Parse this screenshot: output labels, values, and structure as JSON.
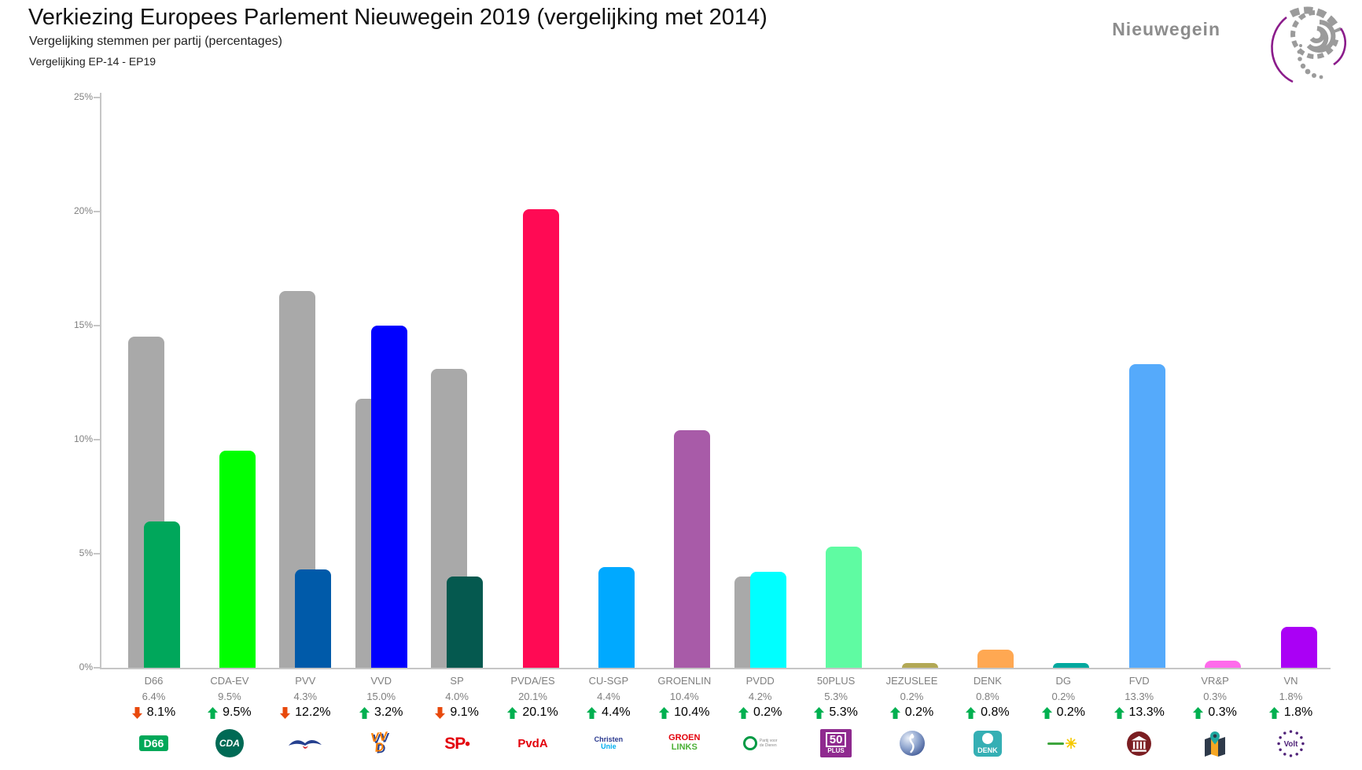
{
  "header": {
    "title": "Verkiezing Europees Parlement Nieuwegein 2019 (vergelijking met 2014)",
    "subtitle": "Vergelijking stemmen per partij (percentages)",
    "comparison": "Vergelijking EP-14 - EP19",
    "municipality_logo_text": "Nieuwegein"
  },
  "colors": {
    "bar_2014": "#A9A9A9",
    "axis_line": "#C6C6C6",
    "tick_text": "#808080",
    "label_text": "#7F7F7F",
    "change_text": "#000000",
    "up_arrow": "#00B050",
    "down_arrow": "#E8490C",
    "logo_gray": "#9B9B9B",
    "logo_purple": "#8B1C8B"
  },
  "axis": {
    "y_ticks": [
      {
        "label": "25%",
        "value": 25
      },
      {
        "label": "20%",
        "value": 20
      },
      {
        "label": "15%",
        "value": 15
      },
      {
        "label": "10%",
        "value": 10
      },
      {
        "label": "5%",
        "value": 5
      },
      {
        "label": "0%",
        "value": 0
      }
    ],
    "y_max": 25
  },
  "chart_data": {
    "type": "bar",
    "title": "Verkiezing Europees Parlement Nieuwegein 2019 (vergelijking met 2014)",
    "subtitle": "Vergelijking stemmen per partij (percentages)",
    "comparison": "Vergelijking EP-14 - EP19",
    "xlabel": "",
    "ylabel": "",
    "ylim": [
      0,
      25
    ],
    "grid": false,
    "categories": [
      "D66",
      "CDA-EV",
      "PVV",
      "VVD",
      "SP",
      "PVDA/ES",
      "CU-SGP",
      "GROENLIN",
      "PVDD",
      "50PLUS",
      "JEZUSLEE",
      "DENK",
      "DG",
      "FVD",
      "VR&P",
      "VN"
    ],
    "series": [
      {
        "name": "EP-14",
        "color": "#A9A9A9",
        "values": [
          14.5,
          0,
          16.5,
          11.8,
          13.1,
          0,
          0,
          0,
          4.0,
          0,
          0,
          0,
          0,
          0,
          0,
          0
        ]
      },
      {
        "name": "EP-19",
        "values": [
          6.4,
          9.5,
          4.3,
          15.0,
          4.0,
          20.1,
          4.4,
          10.4,
          4.2,
          5.3,
          0.2,
          0.8,
          0.2,
          13.3,
          0.3,
          1.8
        ]
      }
    ],
    "parties": [
      {
        "name": "D66",
        "value": "6.4%",
        "change": "8.1%",
        "direction": "down",
        "v2019": 6.4,
        "v2014": 14.5,
        "color": "#00A75B",
        "logo": {
          "type": "badge",
          "text": "D66",
          "bg": "#00A859",
          "fg": "#FFFFFF",
          "fs": 14
        }
      },
      {
        "name": "CDA-EV",
        "value": "9.5%",
        "change": "9.5%",
        "direction": "up",
        "v2019": 9.5,
        "v2014": 0,
        "color": "#00FF00",
        "logo": {
          "type": "circle",
          "text": "CDA",
          "bg": "#006A55",
          "fg": "#FFFFFF",
          "fs": 12
        }
      },
      {
        "name": "PVV",
        "value": "4.3%",
        "change": "12.2%",
        "direction": "down",
        "v2019": 4.3,
        "v2014": 16.5,
        "color": "#005AA9",
        "logo": {
          "type": "pvv-bird"
        }
      },
      {
        "name": "VVD",
        "value": "15.0%",
        "change": "3.2%",
        "direction": "up",
        "v2019": 15.0,
        "v2014": 11.8,
        "color": "#0000FF",
        "logo": {
          "type": "vvd",
          "line1": "VV",
          "line2": "D",
          "fg": "#FF7F00",
          "shadow": "#25408F"
        }
      },
      {
        "name": "SP",
        "value": "4.0%",
        "change": "9.1%",
        "direction": "down",
        "v2019": 4.0,
        "v2014": 13.1,
        "color": "#05594F",
        "logo": {
          "type": "sp",
          "text": "SP",
          "color": "#E3000B"
        }
      },
      {
        "name": "PVDA/ES",
        "value": "20.1%",
        "change": "20.1%",
        "direction": "up",
        "v2019": 20.1,
        "v2014": 0,
        "color": "#FF0A54",
        "logo": {
          "type": "plain-text",
          "text": "PvdA",
          "color": "#E3000B",
          "fs": 15
        }
      },
      {
        "name": "CU-SGP",
        "value": "4.4%",
        "change": "4.4%",
        "direction": "up",
        "v2019": 4.4,
        "v2014": 0,
        "color": "#00A9FF",
        "logo": {
          "type": "stack",
          "lines": [
            {
              "text": "Christen",
              "color": "#2B3A8F",
              "fs": 9
            },
            {
              "text": "Unie",
              "color": "#00AEEF",
              "fs": 9
            }
          ]
        }
      },
      {
        "name": "GROENLIN",
        "value": "10.4%",
        "change": "10.4%",
        "direction": "up",
        "v2019": 10.4,
        "v2014": 0,
        "color": "#A85BA8",
        "logo": {
          "type": "stack",
          "lines": [
            {
              "text": "GROEN",
              "color": "#E3000B",
              "fs": 11
            },
            {
              "text": "LINKS",
              "color": "#4BB035",
              "fs": 11
            }
          ]
        }
      },
      {
        "name": "PVDD",
        "value": "4.2%",
        "change": "0.2%",
        "direction": "up",
        "v2019": 4.2,
        "v2014": 4.0,
        "color": "#00FFFF",
        "logo": {
          "type": "pvdd",
          "line1": "Partij voor",
          "line2": "de Dieren",
          "ring": "#009A44"
        }
      },
      {
        "name": "50PLUS",
        "value": "5.3%",
        "change": "5.3%",
        "direction": "up",
        "v2019": 5.3,
        "v2014": 0,
        "color": "#5FFBA2",
        "logo": {
          "type": "fiftyplus",
          "top": "50",
          "bottom": "PLUS",
          "bg": "#8F2A8F"
        }
      },
      {
        "name": "JEZUSLEE",
        "value": "0.2%",
        "change": "0.2%",
        "direction": "up",
        "v2019": 0.2,
        "v2014": 0,
        "color": "#B2A855",
        "logo": {
          "type": "globe"
        }
      },
      {
        "name": "DENK",
        "value": "0.8%",
        "change": "0.8%",
        "direction": "up",
        "v2019": 0.8,
        "v2014": 0,
        "color": "#FFA852",
        "logo": {
          "type": "denk",
          "text": "DENK",
          "bg": "#35AFB4"
        }
      },
      {
        "name": "DG",
        "value": "0.2%",
        "change": "0.2%",
        "direction": "up",
        "v2019": 0.2,
        "v2014": 0,
        "color": "#00A89E",
        "logo": {
          "type": "dg-sun"
        }
      },
      {
        "name": "FVD",
        "value": "13.3%",
        "change": "13.3%",
        "direction": "up",
        "v2019": 13.3,
        "v2014": 0,
        "color": "#55AAFB",
        "logo": {
          "type": "temple",
          "bg": "#7B1E22"
        }
      },
      {
        "name": "VR&P",
        "value": "0.3%",
        "change": "0.3%",
        "direction": "up",
        "v2019": 0.3,
        "v2014": 0,
        "color": "#FF6BEB",
        "logo": {
          "type": "map-pin"
        }
      },
      {
        "name": "VN",
        "value": "1.8%",
        "change": "1.8%",
        "direction": "up",
        "v2019": 1.8,
        "v2014": 0,
        "color": "#AA00F5",
        "logo": {
          "type": "volt",
          "text": "Volt",
          "color": "#502379"
        }
      }
    ]
  }
}
